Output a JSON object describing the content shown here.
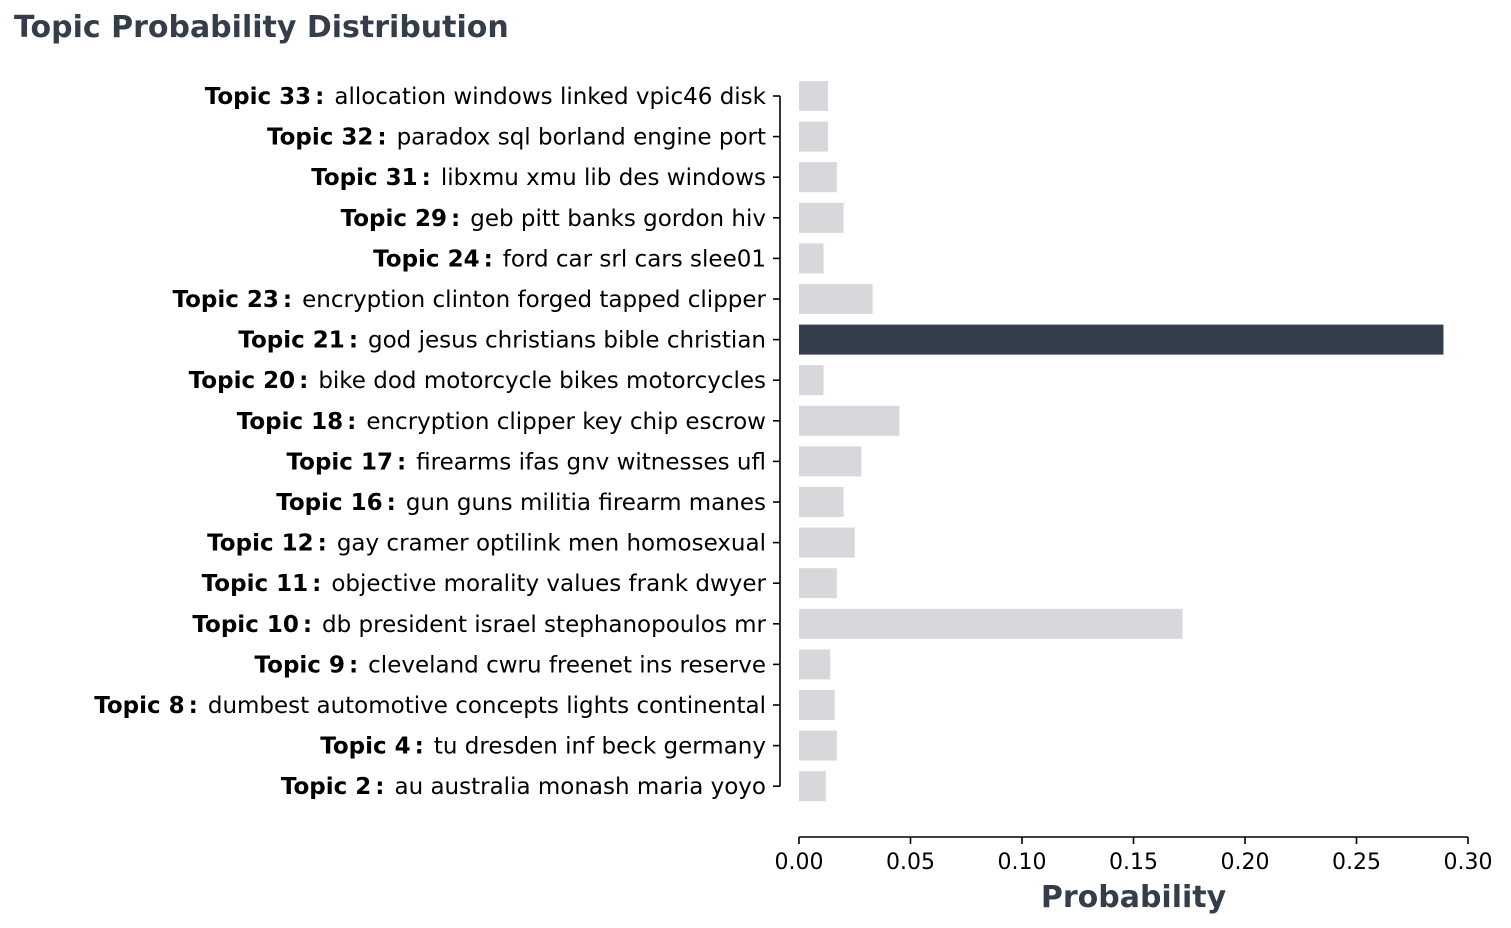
{
  "colors": {
    "highlight": "#343e4a",
    "bar": "#d7d8dc",
    "title": "#343e4a",
    "axis": "#000000",
    "text": "#000000"
  },
  "chart_data": {
    "type": "bar",
    "orientation": "horizontal",
    "title": "Topic Probability Distribution",
    "xlabel": "Probability",
    "ylabel": "",
    "xlim": [
      0,
      0.3
    ],
    "xticks": [
      0.0,
      0.05,
      0.1,
      0.15,
      0.2,
      0.25,
      0.3
    ],
    "xtick_labels": [
      "0.00",
      "0.05",
      "0.10",
      "0.15",
      "0.20",
      "0.25",
      "0.30"
    ],
    "highlighted_category": "Topic 21",
    "categories": [
      {
        "topic": "Topic 33",
        "words": "allocation windows linked vpic46 disk",
        "value": 0.013
      },
      {
        "topic": "Topic 32",
        "words": "paradox sql borland engine port",
        "value": 0.013
      },
      {
        "topic": "Topic 31",
        "words": "libxmu xmu lib des windows",
        "value": 0.017
      },
      {
        "topic": "Topic 29",
        "words": "geb pitt banks gordon hiv",
        "value": 0.02
      },
      {
        "topic": "Topic 24",
        "words": "ford car srl cars slee01",
        "value": 0.011
      },
      {
        "topic": "Topic 23",
        "words": "encryption clinton forged tapped clipper",
        "value": 0.033
      },
      {
        "topic": "Topic 21",
        "words": "god jesus christians bible christian",
        "value": 0.289
      },
      {
        "topic": "Topic 20",
        "words": "bike dod motorcycle bikes motorcycles",
        "value": 0.011
      },
      {
        "topic": "Topic 18",
        "words": "encryption clipper key chip escrow",
        "value": 0.045
      },
      {
        "topic": "Topic 17",
        "words": "firearms ifas gnv witnesses ufl",
        "value": 0.028
      },
      {
        "topic": "Topic 16",
        "words": "gun guns militia firearm manes",
        "value": 0.02
      },
      {
        "topic": "Topic 12",
        "words": "gay cramer optilink men homosexual",
        "value": 0.025
      },
      {
        "topic": "Topic 11",
        "words": "objective morality values frank dwyer",
        "value": 0.017
      },
      {
        "topic": "Topic 10",
        "words": "db president israel stephanopoulos mr",
        "value": 0.172
      },
      {
        "topic": "Topic 9",
        "words": "cleveland cwru freenet ins reserve",
        "value": 0.014
      },
      {
        "topic": "Topic 8",
        "words": "dumbest automotive concepts lights continental",
        "value": 0.016
      },
      {
        "topic": "Topic 4",
        "words": "tu dresden inf beck germany",
        "value": 0.017
      },
      {
        "topic": "Topic 2",
        "words": "au australia monash maria yoyo",
        "value": 0.012
      }
    ]
  }
}
